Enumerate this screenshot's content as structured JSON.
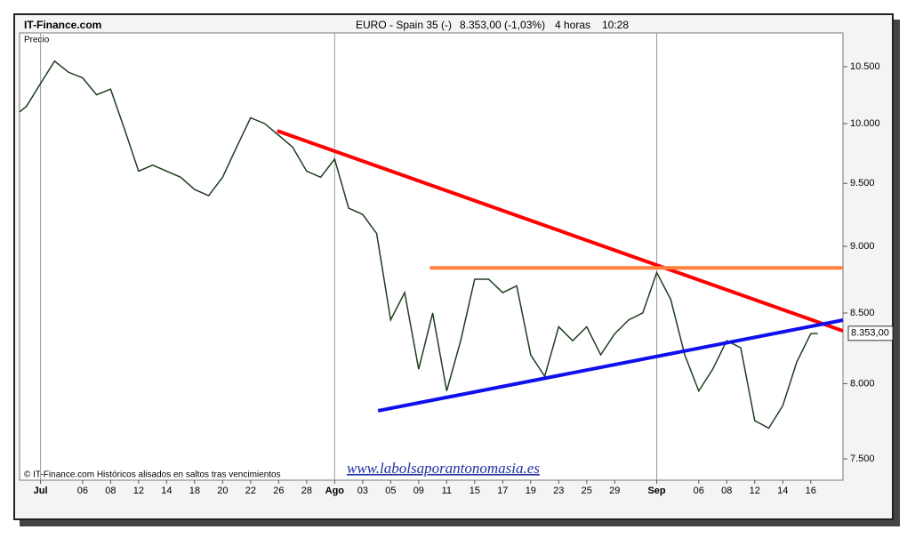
{
  "chart_data": {
    "type": "line",
    "source": "IT-Finance.com",
    "title": "EURO - Spain 35 (-)",
    "quote": "8.353,00 (-1,03%)",
    "timeframe": "4 horas",
    "time": "10:28",
    "ylabel": "Precio",
    "footnote": "© IT-Finance.com Históricos alisados en saltos tras vencimientos",
    "watermark": "www.labolsaporantonomasia.es",
    "log_scale": true,
    "x": [
      -1.5,
      -1,
      0,
      1,
      2,
      3,
      4,
      5,
      6,
      7,
      8,
      9,
      10,
      11,
      12,
      13,
      14,
      15,
      16,
      17,
      18,
      19,
      20,
      21,
      22,
      23,
      24,
      25,
      26,
      27,
      28,
      29,
      30,
      31,
      32,
      33,
      34,
      35,
      36,
      37,
      38,
      39,
      40,
      41,
      42,
      43,
      44,
      45,
      46,
      47,
      48,
      49,
      50,
      51,
      52,
      53,
      54,
      55,
      55.5
    ],
    "series": [
      {
        "name": "Precio",
        "color": "#1f3d1f",
        "values": [
          10100,
          10150,
          10350,
          10550,
          10450,
          10400,
          10250,
          10300,
          9950,
          9600,
          9650,
          9600,
          9550,
          9450,
          9400,
          9550,
          9800,
          10050,
          10000,
          9900,
          9800,
          9600,
          9550,
          9700,
          9300,
          9250,
          9100,
          8450,
          8650,
          8100,
          8500,
          7950,
          8300,
          8750,
          8750,
          8650,
          8700,
          8200,
          8050,
          8400,
          8300,
          8400,
          8200,
          8350,
          8450,
          8500,
          8800,
          8600,
          8200,
          7950,
          8100,
          8300,
          8250,
          7750,
          7700,
          7850,
          8150,
          8350,
          8353
        ]
      }
    ],
    "last_value": 8353,
    "last_value_label": "8.353,00",
    "trendlines": [
      {
        "color": "#ff0000",
        "x": [
          16.9,
          57.3
        ],
        "y": [
          9938,
          8370
        ]
      },
      {
        "color": "#1010ee",
        "x": [
          24.1,
          57.3
        ],
        "y": [
          7816,
          8448
        ]
      },
      {
        "color": "#ff7f3f",
        "x": [
          27.8,
          57.3
        ],
        "y": [
          8835,
          8835
        ]
      }
    ],
    "xlim": [
      -1.5,
      57.3
    ],
    "xticks": [
      {
        "value": 0,
        "label": "Jul"
      },
      {
        "value": 3,
        "label": "06"
      },
      {
        "value": 5,
        "label": "08"
      },
      {
        "value": 7,
        "label": "12"
      },
      {
        "value": 9,
        "label": "14"
      },
      {
        "value": 11,
        "label": "18"
      },
      {
        "value": 13,
        "label": "20"
      },
      {
        "value": 15,
        "label": "22"
      },
      {
        "value": 17,
        "label": "26"
      },
      {
        "value": 19,
        "label": "28"
      },
      {
        "value": 21,
        "label": "Ago"
      },
      {
        "value": 23,
        "label": "03"
      },
      {
        "value": 25,
        "label": "05"
      },
      {
        "value": 27,
        "label": "09"
      },
      {
        "value": 29,
        "label": "11"
      },
      {
        "value": 31,
        "label": "15"
      },
      {
        "value": 33,
        "label": "17"
      },
      {
        "value": 35,
        "label": "19"
      },
      {
        "value": 37,
        "label": "23"
      },
      {
        "value": 39,
        "label": "25"
      },
      {
        "value": 41,
        "label": "29"
      },
      {
        "value": 44,
        "label": "Sep"
      },
      {
        "value": 47,
        "label": "06"
      },
      {
        "value": 49,
        "label": "08"
      },
      {
        "value": 51,
        "label": "12"
      },
      {
        "value": 53,
        "label": "14"
      },
      {
        "value": 55,
        "label": "16"
      }
    ],
    "month_separators": [
      0,
      21,
      44
    ],
    "ylim": [
      7364,
      10809
    ],
    "yticks": [
      {
        "value": 7500,
        "label": "7.500"
      },
      {
        "value": 8000,
        "label": "8.000"
      },
      {
        "value": 8500,
        "label": "8.500"
      },
      {
        "value": 9000,
        "label": "9.000"
      },
      {
        "value": 9500,
        "label": "9.500"
      },
      {
        "value": 10000,
        "label": "10.000"
      },
      {
        "value": 10500,
        "label": "10.500"
      }
    ]
  }
}
